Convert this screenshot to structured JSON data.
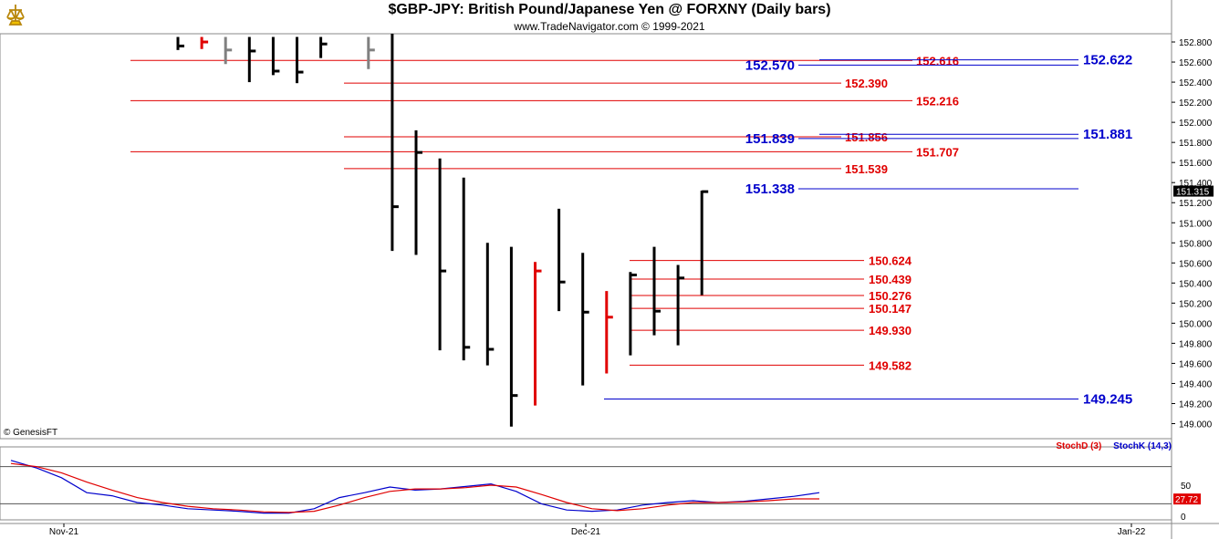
{
  "header": {
    "title": "$GBP-JPY:  British Pound/Japanese Yen @ FORXNY  (Daily bars)",
    "subtitle": "www.TradeNavigator.com © 1999-2021",
    "watermark": "© GenesisFT"
  },
  "colors": {
    "up_bar": "#000000",
    "down_bar": "#e00000",
    "neutral_bar": "#808080",
    "red_level": "#e00000",
    "blue_level": "#0000cc",
    "stoch_d": "#e00000",
    "stoch_k": "#0000cc"
  },
  "chart_data": [
    {
      "type": "line",
      "title": "$GBP-JPY:  British Pound/Japanese Yen @ FORXNY  (Daily bars)",
      "ylim": [
        148.9,
        152.9
      ],
      "y_ticks": [
        "152.800",
        "152.600",
        "152.400",
        "152.200",
        "152.000",
        "151.800",
        "151.600",
        "151.400",
        "151.200",
        "151.000",
        "150.800",
        "150.600",
        "150.400",
        "150.200",
        "150.000",
        "149.800",
        "149.600",
        "149.400",
        "149.200",
        "149.000"
      ],
      "x_ticks": [
        "Nov-21",
        "Dec-21",
        "Jan-22"
      ],
      "current_price": "151.315",
      "bars": [
        {
          "date": "2021-11-16",
          "high": 152.85,
          "low": 152.72,
          "close": 152.76,
          "color": "black"
        },
        {
          "date": "2021-11-17",
          "high": 152.85,
          "low": 152.73,
          "close": 152.8,
          "color": "red"
        },
        {
          "date": "2021-11-18",
          "high": 152.85,
          "low": 152.58,
          "close": 152.72,
          "color": "gray"
        },
        {
          "date": "2021-11-19",
          "high": 152.85,
          "low": 152.4,
          "close": 152.71,
          "color": "black"
        },
        {
          "date": "2021-11-22",
          "high": 152.85,
          "low": 152.47,
          "close": 152.51,
          "color": "black"
        },
        {
          "date": "2021-11-23",
          "high": 152.85,
          "low": 152.39,
          "close": 152.5,
          "color": "black"
        },
        {
          "date": "2021-11-24",
          "high": 152.85,
          "low": 152.64,
          "close": 152.78,
          "color": "black"
        },
        {
          "date": "2021-11-26",
          "high": 152.85,
          "low": 152.53,
          "close": 152.72,
          "color": "gray"
        },
        {
          "date": "2021-11-29",
          "high": 152.9,
          "low": 150.72,
          "close": 151.16,
          "color": "black"
        },
        {
          "date": "2021-11-30",
          "high": 151.92,
          "low": 150.68,
          "close": 151.7,
          "color": "black"
        },
        {
          "date": "2021-12-01",
          "high": 151.64,
          "low": 149.73,
          "close": 150.52,
          "color": "black"
        },
        {
          "date": "2021-12-02",
          "high": 151.45,
          "low": 149.63,
          "close": 149.76,
          "color": "black"
        },
        {
          "date": "2021-12-03",
          "high": 150.8,
          "low": 149.58,
          "close": 149.74,
          "color": "black"
        },
        {
          "date": "2021-12-06",
          "high": 150.76,
          "low": 148.97,
          "close": 149.28,
          "color": "black"
        },
        {
          "date": "2021-12-07",
          "high": 150.61,
          "low": 149.18,
          "close": 150.52,
          "color": "red"
        },
        {
          "date": "2021-12-08",
          "high": 151.14,
          "low": 150.12,
          "close": 150.41,
          "color": "black"
        },
        {
          "date": "2021-12-09",
          "high": 150.7,
          "low": 149.38,
          "close": 150.11,
          "color": "black"
        },
        {
          "date": "2021-12-10",
          "high": 150.32,
          "low": 149.5,
          "close": 150.06,
          "color": "red"
        },
        {
          "date": "2021-12-13",
          "high": 150.51,
          "low": 149.68,
          "close": 150.48,
          "color": "black"
        },
        {
          "date": "2021-12-14",
          "high": 150.76,
          "low": 149.88,
          "close": 150.12,
          "color": "black"
        },
        {
          "date": "2021-12-15",
          "high": 150.58,
          "low": 149.78,
          "close": 150.45,
          "color": "black"
        },
        {
          "date": "2021-12-16",
          "high": 151.32,
          "low": 150.28,
          "close": 151.31,
          "color": "black"
        }
      ],
      "levels": [
        {
          "value": "152.616",
          "color": "red"
        },
        {
          "value": "152.390",
          "color": "red"
        },
        {
          "value": "152.216",
          "color": "red"
        },
        {
          "value": "151.856",
          "color": "red"
        },
        {
          "value": "151.707",
          "color": "red"
        },
        {
          "value": "151.539",
          "color": "red"
        },
        {
          "value": "150.624",
          "color": "red"
        },
        {
          "value": "150.439",
          "color": "red"
        },
        {
          "value": "150.276",
          "color": "red"
        },
        {
          "value": "150.147",
          "color": "red"
        },
        {
          "value": "149.930",
          "color": "red"
        },
        {
          "value": "149.582",
          "color": "red"
        },
        {
          "value": "152.570",
          "color": "blue"
        },
        {
          "value": "152.622",
          "color": "blue"
        },
        {
          "value": "151.839",
          "color": "blue"
        },
        {
          "value": "151.881",
          "color": "blue"
        },
        {
          "value": "151.338",
          "color": "blue"
        },
        {
          "value": "149.245",
          "color": "blue"
        }
      ]
    },
    {
      "type": "line",
      "title": "",
      "ylim": [
        0,
        100
      ],
      "y_ticks": [
        "50",
        "0"
      ],
      "legend": [
        "StochD (3)",
        "StochK (14,3)"
      ],
      "last_value": "27.72",
      "series": [
        {
          "name": "StochK (14,3)",
          "values": [
            90,
            78,
            62,
            38,
            33,
            22,
            18,
            12,
            10,
            8,
            5,
            5,
            12,
            30,
            38,
            47,
            42,
            44,
            48,
            52,
            40,
            20,
            10,
            8,
            10,
            18,
            22,
            25,
            22,
            24,
            28,
            32,
            38
          ]
        },
        {
          "name": "StochD (3)",
          "values": [
            85,
            80,
            70,
            55,
            42,
            30,
            22,
            16,
            12,
            10,
            7,
            6,
            8,
            18,
            30,
            40,
            44,
            44,
            46,
            50,
            47,
            35,
            22,
            12,
            9,
            12,
            18,
            22,
            22,
            23,
            25,
            28,
            28
          ]
        }
      ]
    }
  ]
}
